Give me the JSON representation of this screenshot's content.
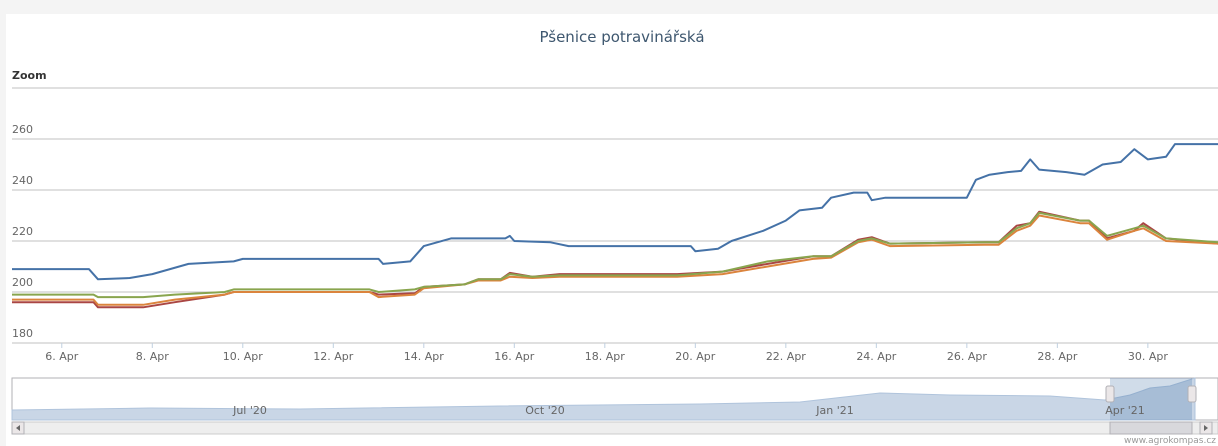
{
  "chart_data": {
    "type": "line",
    "title": "Pšenice potravinářská",
    "zoom_label": "Zoom",
    "credit": "www.agrokompas.cz",
    "xlim": [
      4.9,
      31.55
    ],
    "xticks": [
      {
        "value": 6,
        "label": "6. Apr"
      },
      {
        "value": 8,
        "label": "8. Apr"
      },
      {
        "value": 10,
        "label": "10. Apr"
      },
      {
        "value": 12,
        "label": "12. Apr"
      },
      {
        "value": 14,
        "label": "14. Apr"
      },
      {
        "value": 16,
        "label": "16. Apr"
      },
      {
        "value": 18,
        "label": "18. Apr"
      },
      {
        "value": 20,
        "label": "20. Apr"
      },
      {
        "value": 22,
        "label": "22. Apr"
      },
      {
        "value": 24,
        "label": "24. Apr"
      },
      {
        "value": 26,
        "label": "26. Apr"
      },
      {
        "value": 28,
        "label": "28. Apr"
      },
      {
        "value": 30,
        "label": "30. Apr"
      }
    ],
    "ylim": [
      180,
      280
    ],
    "yticks": [
      180,
      200,
      220,
      240,
      260
    ],
    "grid": true,
    "navigator_labels": [
      "Jul '20",
      "Oct '20",
      "Jan '21",
      "Apr '21"
    ],
    "series": [
      {
        "color": "#4572a7",
        "x": [
          4.9,
          6.6,
          6.8,
          7.5,
          8.0,
          8.8,
          9.8,
          10.0,
          13.0,
          13.1,
          13.7,
          14.0,
          14.6,
          15.8,
          15.9,
          16.0,
          16.8,
          17.2,
          19.9,
          20.0,
          20.5,
          20.8,
          21.5,
          22.0,
          22.3,
          22.8,
          23.0,
          23.5,
          23.8,
          23.9,
          24.2,
          26.0,
          26.2,
          26.5,
          26.9,
          27.2,
          27.4,
          27.6,
          28.2,
          28.6,
          29.0,
          29.4,
          29.7,
          30.0,
          30.4,
          30.6,
          31.55
        ],
        "values": [
          209,
          209,
          205,
          205.5,
          207,
          211,
          212,
          213,
          213,
          211,
          212,
          218,
          221,
          221,
          222,
          220,
          219.5,
          218,
          218,
          216,
          217,
          220,
          224,
          228,
          232,
          233,
          237,
          239,
          239,
          236,
          237,
          237,
          244,
          246,
          247,
          247.5,
          252,
          248,
          247,
          246,
          250,
          251,
          256,
          252,
          253,
          258,
          258
        ]
      },
      {
        "color": "#aa4643",
        "x": [
          4.9,
          6.7,
          6.8,
          7.8,
          8.5,
          9.6,
          9.8,
          12.8,
          13.0,
          13.8,
          14.0,
          14.9,
          15.2,
          15.7,
          15.9,
          16.4,
          17.0,
          19.6,
          20.6,
          21.6,
          22.6,
          23.0,
          23.6,
          23.9,
          24.3,
          26.4,
          26.7,
          27.1,
          27.4,
          27.6,
          28.5,
          28.7,
          29.1,
          29.7,
          29.9,
          30.4,
          31.55
        ],
        "values": [
          196,
          196,
          194,
          194,
          196,
          199,
          200,
          200,
          199,
          199.5,
          202,
          203,
          205,
          205,
          207.5,
          206,
          207,
          207,
          208,
          211,
          214,
          214,
          220.5,
          221.5,
          219,
          219.5,
          219.5,
          226,
          227,
          231.5,
          228,
          228,
          221,
          224,
          227,
          221,
          219
        ]
      },
      {
        "color": "#db843d",
        "x": [
          4.9,
          6.7,
          6.8,
          7.8,
          8.5,
          9.6,
          9.8,
          12.8,
          13.0,
          13.8,
          14.0,
          14.9,
          15.2,
          15.7,
          15.9,
          16.4,
          17.0,
          19.6,
          20.6,
          21.6,
          22.6,
          23.0,
          23.6,
          23.9,
          24.3,
          26.4,
          26.7,
          27.1,
          27.4,
          27.6,
          28.5,
          28.7,
          29.1,
          29.7,
          29.9,
          30.4,
          31.55
        ],
        "values": [
          197,
          197,
          195,
          195,
          197,
          199,
          200,
          200,
          198,
          199,
          201.5,
          203,
          204.5,
          204.5,
          206,
          205.5,
          206,
          206,
          207,
          210,
          213,
          213.5,
          219.5,
          220.5,
          218,
          218.5,
          218.5,
          224,
          226,
          230,
          227,
          227,
          220.5,
          224,
          225,
          220,
          219
        ]
      },
      {
        "color": "#89a54e",
        "x": [
          4.9,
          6.7,
          6.8,
          7.8,
          8.5,
          9.6,
          9.8,
          12.8,
          13.0,
          13.8,
          14.0,
          14.9,
          15.2,
          15.7,
          15.9,
          16.4,
          17.0,
          19.6,
          20.6,
          21.6,
          22.6,
          23.0,
          23.6,
          23.9,
          24.3,
          26.4,
          26.7,
          27.1,
          27.4,
          27.6,
          28.5,
          28.7,
          29.1,
          29.7,
          29.9,
          30.4,
          31.55
        ],
        "values": [
          199,
          199,
          198,
          198,
          199,
          200,
          201,
          201,
          200,
          201,
          202,
          203,
          205,
          205,
          207,
          206,
          206.5,
          206.5,
          208,
          212,
          214,
          214,
          220,
          221,
          219,
          219.5,
          219.5,
          225,
          227,
          231,
          228,
          228,
          222,
          225,
          226,
          221,
          219.5
        ]
      }
    ]
  }
}
